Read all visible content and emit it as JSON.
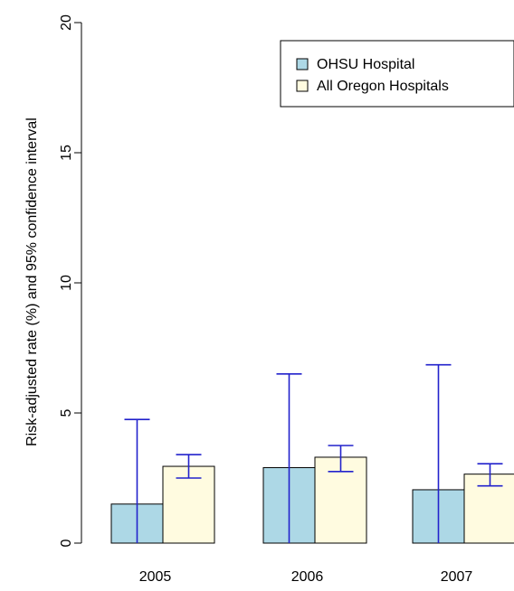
{
  "chart_data": {
    "type": "bar",
    "title": "",
    "xlabel": "",
    "ylabel": "Risk-adjusted rate (%) and 95% confidence interval",
    "ylim": [
      0,
      20
    ],
    "y_ticks": [
      "0",
      "5",
      "10",
      "15",
      "20"
    ],
    "categories": [
      "2005",
      "2006",
      "2007"
    ],
    "series": [
      {
        "name": "OHSU Hospital",
        "color": "#add8e6",
        "values": [
          1.5,
          2.9,
          2.05
        ],
        "ci_low": [
          0,
          0,
          0
        ],
        "ci_high": [
          4.75,
          6.5,
          6.85
        ]
      },
      {
        "name": "All Oregon Hospitals",
        "color": "#fffbe0",
        "values": [
          2.95,
          3.3,
          2.65
        ],
        "ci_low": [
          2.5,
          2.75,
          2.2
        ],
        "ci_high": [
          3.4,
          3.75,
          3.05
        ]
      }
    ],
    "error_bar_color": "#2222cc",
    "legend_position": "top-right",
    "grid": false
  }
}
